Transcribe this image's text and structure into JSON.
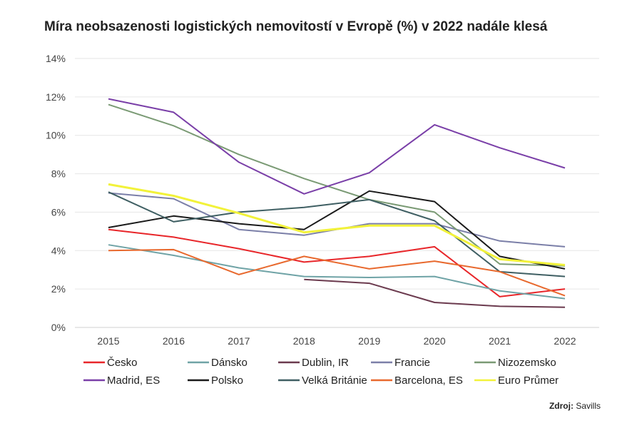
{
  "chart_data": {
    "type": "line",
    "title": "Míra neobsazenosti logistických nemovitostí v Evropě (%) v 2022 nadále klesá",
    "x": [
      "2015",
      "2016",
      "2017",
      "2018",
      "2019",
      "2020",
      "2021",
      "2022"
    ],
    "ylim": [
      0,
      14
    ],
    "yticks": [
      "0%",
      "2%",
      "4%",
      "6%",
      "8%",
      "10%",
      "12%",
      "14%"
    ],
    "grid": true,
    "legend_position": "bottom",
    "series": [
      {
        "name": "Česko",
        "color": "#e8262a",
        "values": [
          5.1,
          4.7,
          4.1,
          3.4,
          3.7,
          4.2,
          1.6,
          2.0
        ]
      },
      {
        "name": "Dánsko",
        "color": "#6fa3a6",
        "values": [
          4.3,
          3.75,
          3.1,
          2.65,
          2.6,
          2.65,
          1.9,
          1.5
        ]
      },
      {
        "name": "Dublin, IR",
        "color": "#6b3a4e",
        "values": [
          null,
          null,
          null,
          2.5,
          2.3,
          1.3,
          1.1,
          1.05
        ]
      },
      {
        "name": "Francie",
        "color": "#7b7fa8",
        "values": [
          7.0,
          6.7,
          5.1,
          4.8,
          5.4,
          5.4,
          4.5,
          4.2
        ]
      },
      {
        "name": "Nizozemsko",
        "color": "#7a9a74",
        "values": [
          11.6,
          10.5,
          9.0,
          7.75,
          6.65,
          6.0,
          3.3,
          3.2
        ]
      },
      {
        "name": "Madrid, ES",
        "color": "#7a3fa8",
        "values": [
          11.9,
          11.2,
          8.6,
          6.95,
          8.05,
          10.55,
          9.35,
          8.3
        ]
      },
      {
        "name": "Polsko",
        "color": "#1a1a1a",
        "values": [
          5.2,
          5.8,
          5.4,
          5.1,
          7.1,
          6.55,
          3.7,
          3.05
        ]
      },
      {
        "name": "Velká Británie",
        "color": "#3f5f63",
        "values": [
          7.05,
          5.5,
          6.0,
          6.25,
          6.65,
          5.55,
          2.9,
          2.65
        ]
      },
      {
        "name": "Barcelona, ES",
        "color": "#e8692e",
        "values": [
          4.0,
          4.05,
          2.75,
          3.7,
          3.05,
          3.45,
          2.9,
          1.65
        ]
      },
      {
        "name": "Euro Průmer",
        "color": "#f2f23a",
        "values": [
          7.45,
          6.85,
          5.95,
          4.95,
          5.3,
          5.3,
          3.55,
          3.25
        ]
      }
    ]
  },
  "source": {
    "label": "Zdroj:",
    "value": "Savills"
  }
}
